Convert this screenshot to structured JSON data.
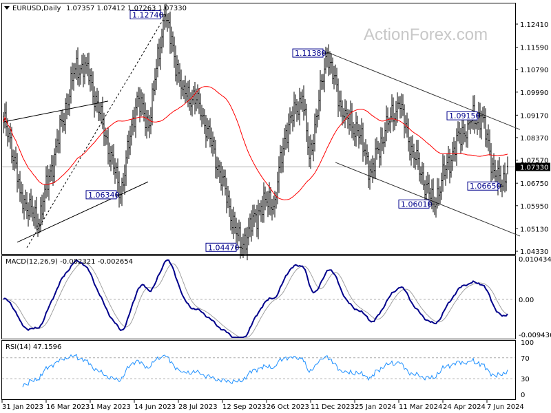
{
  "header": {
    "symbol": "EURUSD,Daily",
    "ohlc": "1.07357 1.07412 1.07263 1.07330"
  },
  "watermark": "ActionForex.com",
  "chart_data": {
    "type": "ohlc-bar",
    "title": "EURUSD,Daily",
    "current_price": 1.0733,
    "current_price_label": "1.07330",
    "last_bar": {
      "open": 1.07357,
      "high": 1.07412,
      "low": 1.07263,
      "close": 1.0733
    },
    "price_ticks": [
      "1.12410",
      "1.11590",
      "1.10790",
      "1.09990",
      "1.09170",
      "1.08370",
      "1.07570",
      "1.06750",
      "1.05950",
      "1.05130",
      "1.04330"
    ],
    "price_range": [
      1.0433,
      1.1241
    ],
    "x_ticks": [
      {
        "bar": 0,
        "label": "31 Jan 2023"
      },
      {
        "bar": 32,
        "label": "16 Mar 2023"
      },
      {
        "bar": 64,
        "label": "1 May 2023"
      },
      {
        "bar": 96,
        "label": "14 Jun 2023"
      },
      {
        "bar": 128,
        "label": "28 Jul 2023"
      },
      {
        "bar": 160,
        "label": "12 Sep 2023"
      },
      {
        "bar": 192,
        "label": "26 Oct 2023"
      },
      {
        "bar": 224,
        "label": "11 Dec 2023"
      },
      {
        "bar": 256,
        "label": "25 Jan 2024"
      },
      {
        "bar": 288,
        "label": "11 Mar 2024"
      },
      {
        "bar": 320,
        "label": "24 Apr 2024"
      },
      {
        "bar": 352,
        "label": "7 Jun 2024"
      }
    ],
    "close_waypoints": [
      [
        0,
        1.0893
      ],
      [
        5,
        1.0837
      ],
      [
        12,
        1.0641
      ],
      [
        25,
        1.0531
      ],
      [
        52,
        1.1082
      ],
      [
        60,
        1.1094
      ],
      [
        72,
        1.0886
      ],
      [
        85,
        1.0634
      ],
      [
        97,
        1.0984
      ],
      [
        105,
        1.0874
      ],
      [
        117,
        1.1274
      ],
      [
        130,
        1.1008
      ],
      [
        142,
        1.0959
      ],
      [
        157,
        1.0715
      ],
      [
        172,
        1.0447
      ],
      [
        187,
        1.0592
      ],
      [
        197,
        1.0617
      ],
      [
        205,
        1.0862
      ],
      [
        217,
        1.0984
      ],
      [
        222,
        1.0764
      ],
      [
        235,
        1.1138
      ],
      [
        247,
        1.0911
      ],
      [
        257,
        1.0862
      ],
      [
        267,
        1.0715
      ],
      [
        277,
        1.0862
      ],
      [
        287,
        1.0959
      ],
      [
        297,
        1.0788
      ],
      [
        312,
        1.0601
      ],
      [
        327,
        1.08
      ],
      [
        337,
        1.0886
      ],
      [
        347,
        1.0915
      ],
      [
        357,
        1.07
      ],
      [
        362,
        1.0665
      ],
      [
        366,
        1.0733
      ]
    ],
    "annotations": [
      {
        "bar": 117,
        "price": 1.1274,
        "label": "1.12740",
        "side": "left"
      },
      {
        "bar": 235,
        "price": 1.1138,
        "label": "1.11380",
        "side": "left"
      },
      {
        "bar": 85,
        "price": 1.0634,
        "label": "1.06340",
        "side": "left"
      },
      {
        "bar": 172,
        "price": 1.0447,
        "label": "1.04470",
        "side": "left"
      },
      {
        "bar": 312,
        "price": 1.0601,
        "label": "1.06010",
        "side": "left"
      },
      {
        "bar": 347,
        "price": 1.0915,
        "label": "1.09150",
        "side": "left"
      },
      {
        "bar": 362,
        "price": 1.0665,
        "label": "1.06650",
        "side": "left"
      }
    ],
    "trendlines": [
      {
        "name": "upper-wedge-line",
        "from": [
          0,
          1.0893
        ],
        "to": [
          76,
          1.0967
        ],
        "style": "solid"
      },
      {
        "name": "lower-wedge-line",
        "from": [
          10,
          1.0465
        ],
        "to": [
          105,
          1.068
        ],
        "style": "solid"
      },
      {
        "name": "dotted-rally-line",
        "from": [
          17,
          1.0446
        ],
        "to": [
          118,
          1.1274
        ],
        "style": "dotted"
      },
      {
        "name": "upper-channel-line",
        "from": [
          235,
          1.1141
        ],
        "to": [
          375,
          1.0866
        ],
        "style": "solid"
      },
      {
        "name": "lower-channel-line",
        "from": [
          241,
          1.0749
        ],
        "to": [
          375,
          1.0487
        ],
        "style": "solid"
      }
    ],
    "moving_average": {
      "period": 55,
      "color": "#ff0000"
    },
    "macd": {
      "label": "MACD(12,26,9) -0.002321 -0.002654",
      "range": [
        -0.009436,
        0.010434
      ],
      "ticks": [
        "0.010434",
        "0.00",
        "-0.009436"
      ],
      "color": "#00008b",
      "signal_color": "#a0a0a0"
    },
    "rsi": {
      "label": "RSI(14) 47.1596",
      "range": [
        0,
        100
      ],
      "ticks": [
        "100",
        "70",
        "30",
        "0"
      ],
      "levels": [
        70,
        30
      ],
      "color": "#1e90ff"
    }
  }
}
